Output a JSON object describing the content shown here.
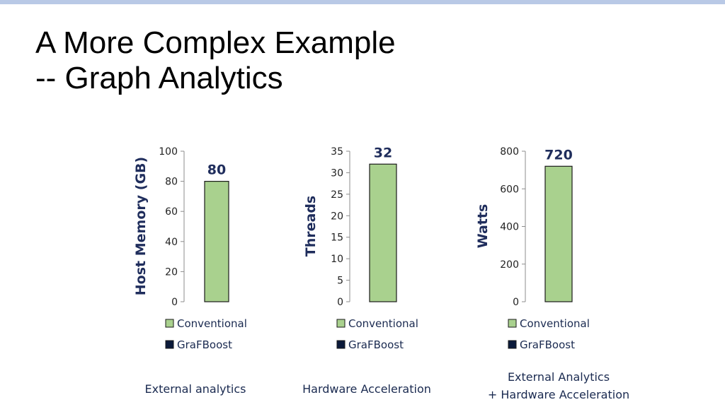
{
  "slide": {
    "title_line1": "A More Complex Example",
    "title_line2": "-- Graph Analytics"
  },
  "colors": {
    "top_bar": "#b9c9e6",
    "conventional": "#a9d18e",
    "grafboost": "#0b1a3a",
    "accent_text": "#1f2d5c"
  },
  "chart_data": [
    {
      "type": "bar",
      "ylabel": "Host Memory (GB)",
      "ylim": [
        0,
        100
      ],
      "yticks": [
        0,
        20,
        40,
        60,
        80,
        100
      ],
      "series": [
        {
          "name": "Conventional",
          "values": [
            80
          ],
          "label": "80"
        },
        {
          "name": "GraFBoost",
          "values": [
            0
          ]
        }
      ],
      "caption": [
        "External analytics"
      ],
      "legend": "bottom"
    },
    {
      "type": "bar",
      "ylabel": "Threads",
      "ylim": [
        0,
        35
      ],
      "yticks": [
        0,
        5,
        10,
        15,
        20,
        25,
        30,
        35
      ],
      "series": [
        {
          "name": "Conventional",
          "values": [
            32
          ],
          "label": "32"
        },
        {
          "name": "GraFBoost",
          "values": [
            0
          ]
        }
      ],
      "caption": [
        "Hardware Acceleration"
      ],
      "legend": "bottom"
    },
    {
      "type": "bar",
      "ylabel": "Watts",
      "ylim": [
        0,
        800
      ],
      "yticks": [
        0,
        200,
        400,
        600,
        800
      ],
      "series": [
        {
          "name": "Conventional",
          "values": [
            720
          ],
          "label": "720"
        },
        {
          "name": "GraFBoost",
          "values": [
            0
          ]
        }
      ],
      "caption": [
        "External Analytics",
        "+ Hardware Acceleration"
      ],
      "legend": "bottom"
    }
  ]
}
